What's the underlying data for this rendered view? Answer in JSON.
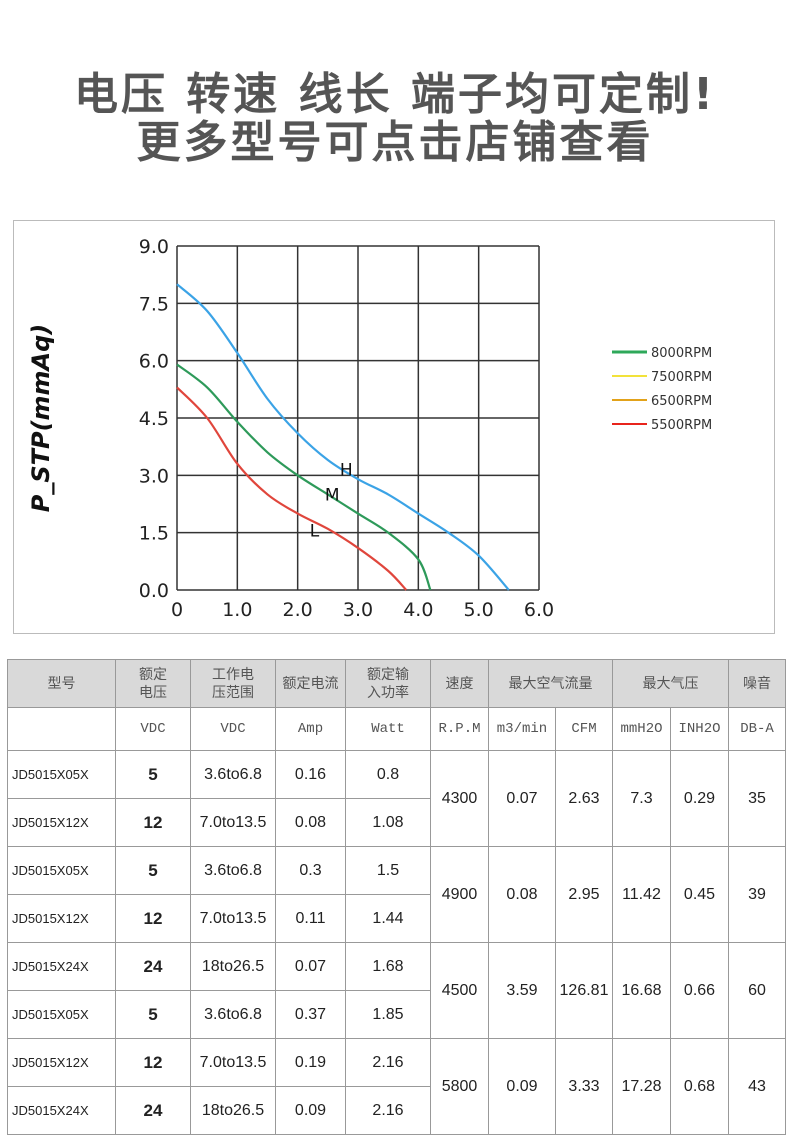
{
  "header": {
    "line1": "电压 转速 线长 端子均可定制!",
    "line2": "更多型号可点击店铺查看"
  },
  "chart_data": {
    "type": "line",
    "ylabel": "P_STP(mmAq)",
    "xlabel": "",
    "xlim": [
      0,
      6
    ],
    "ylim": [
      0,
      9
    ],
    "xticks": [
      "0",
      "1.0",
      "2.0",
      "3.0",
      "4.0",
      "5.0",
      "6.0"
    ],
    "yticks": [
      "0.0",
      "1.5",
      "3.0",
      "4.5",
      "6.0",
      "7.5",
      "9.0"
    ],
    "grid": true,
    "series": [
      {
        "name": "H",
        "color": "#3ba3e6",
        "points": [
          [
            0,
            8.0
          ],
          [
            0.5,
            7.3
          ],
          [
            1,
            6.2
          ],
          [
            1.5,
            5.0
          ],
          [
            2,
            4.1
          ],
          [
            2.5,
            3.4
          ],
          [
            3,
            2.9
          ],
          [
            3.5,
            2.5
          ],
          [
            4,
            2.0
          ],
          [
            4.5,
            1.5
          ],
          [
            5,
            0.9
          ],
          [
            5.5,
            0
          ]
        ]
      },
      {
        "name": "M",
        "color": "#2e9a5a",
        "points": [
          [
            0,
            5.9
          ],
          [
            0.5,
            5.3
          ],
          [
            1,
            4.4
          ],
          [
            1.5,
            3.6
          ],
          [
            2,
            3.0
          ],
          [
            2.5,
            2.5
          ],
          [
            3,
            2.0
          ],
          [
            3.5,
            1.5
          ],
          [
            4,
            0.8
          ],
          [
            4.2,
            0
          ]
        ]
      },
      {
        "name": "L",
        "color": "#e0463c",
        "points": [
          [
            0,
            5.3
          ],
          [
            0.5,
            4.5
          ],
          [
            1,
            3.3
          ],
          [
            1.5,
            2.5
          ],
          [
            2,
            2.0
          ],
          [
            2.5,
            1.6
          ],
          [
            3,
            1.1
          ],
          [
            3.5,
            0.5
          ],
          [
            3.8,
            0
          ]
        ]
      }
    ],
    "legend": {
      "placement": "right",
      "entries": [
        {
          "label": "8000RPM",
          "color": "#2ea85a"
        },
        {
          "label": "7500RPM",
          "color": "#f2e23a"
        },
        {
          "label": "6500RPM",
          "color": "#e2a21a"
        },
        {
          "label": "5500RPM",
          "color": "#e8241c"
        }
      ]
    }
  },
  "table": {
    "headers": [
      "型号",
      "额定\n电压",
      "工作电\n压范围",
      "额定电流",
      "额定输\n入功率",
      "速度",
      "最大空气流量",
      "最大气压",
      "噪音"
    ],
    "units": [
      "",
      "VDC",
      "VDC",
      "Amp",
      "Watt",
      "R.P.M",
      "m3/min",
      "CFM",
      "mmH2O",
      "INH2O",
      "DB-A"
    ],
    "groups": [
      {
        "rpm": "4300",
        "m3": "0.07",
        "cfm": "2.63",
        "mmh2o": "7.3",
        "inh2o": "0.29",
        "db": "35",
        "rows": [
          {
            "model": "JD5015X05X",
            "v": "5",
            "range": "3.6to6.8",
            "amp": "0.16",
            "watt": "0.8"
          },
          {
            "model": "JD5015X12X",
            "v": "12",
            "range": "7.0to13.5",
            "amp": "0.08",
            "watt": "1.08"
          }
        ]
      },
      {
        "rpm": "4900",
        "m3": "0.08",
        "cfm": "2.95",
        "mmh2o": "11.42",
        "inh2o": "0.45",
        "db": "39",
        "rows": [
          {
            "model": "JD5015X05X",
            "v": "5",
            "range": "3.6to6.8",
            "amp": "0.3",
            "watt": "1.5"
          },
          {
            "model": "JD5015X12X",
            "v": "12",
            "range": "7.0to13.5",
            "amp": "0.11",
            "watt": "1.44"
          }
        ]
      },
      {
        "rpm": "4500",
        "m3": "3.59",
        "cfm": "126.81",
        "mmh2o": "16.68",
        "inh2o": "0.66",
        "db": "60",
        "rows": [
          {
            "model": "JD5015X24X",
            "v": "24",
            "range": "18to26.5",
            "amp": "0.07",
            "watt": "1.68"
          },
          {
            "model": "JD5015X05X",
            "v": "5",
            "range": "3.6to6.8",
            "amp": "0.37",
            "watt": "1.85"
          }
        ]
      },
      {
        "rpm": "5800",
        "m3": "0.09",
        "cfm": "3.33",
        "mmh2o": "17.28",
        "inh2o": "0.68",
        "db": "43",
        "rows": [
          {
            "model": "JD5015X12X",
            "v": "12",
            "range": "7.0to13.5",
            "amp": "0.19",
            "watt": "2.16"
          },
          {
            "model": "JD5015X24X",
            "v": "24",
            "range": "18to26.5",
            "amp": "0.09",
            "watt": "2.16"
          }
        ]
      }
    ]
  }
}
